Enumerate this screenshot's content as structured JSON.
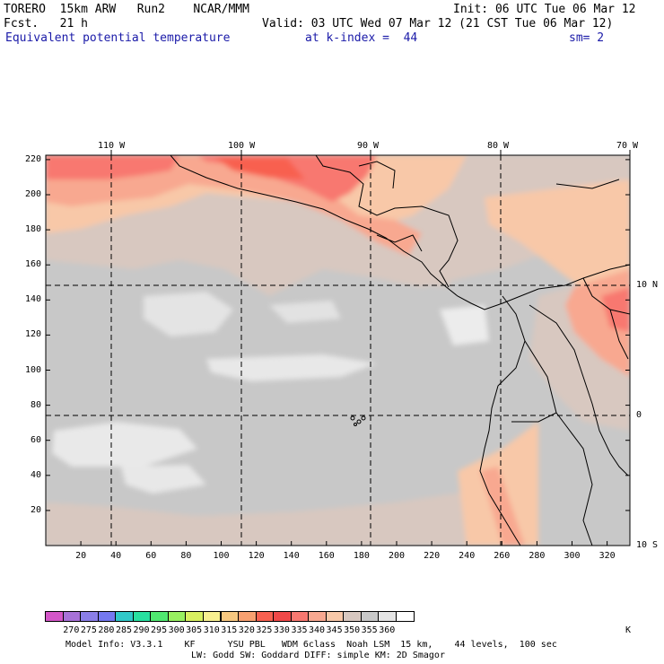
{
  "header": {
    "model_name": "TORERO  15km ARW   Run2    NCAR/MMM",
    "init": "Init: 06 UTC Tue 06 Mar 12",
    "fcst": "Fcst.   21 h",
    "valid": "Valid: 03 UTC Wed 07 Mar 12 (21 CST Tue 06 Mar 12)",
    "field": "Equivalent potential temperature",
    "level": "at k-index =  44",
    "smooth": "sm= 2"
  },
  "map": {
    "top_lon_labels": [
      "110 W",
      "100 W",
      "90 W",
      "80 W",
      "70 W"
    ],
    "right_lat_labels": [
      "10 N",
      "0",
      "10 S"
    ],
    "y_grid_labels": [
      "220",
      "200",
      "180",
      "160",
      "140",
      "120",
      "100",
      "80",
      "60",
      "40",
      "20"
    ],
    "x_grid_labels": [
      "20",
      "40",
      "60",
      "80",
      "100",
      "120",
      "140",
      "160",
      "180",
      "200",
      "220",
      "240",
      "260",
      "280",
      "300",
      "320"
    ]
  },
  "colorbar": {
    "colors": [
      "#d456c8",
      "#a872d8",
      "#8a7ee8",
      "#7478f0",
      "#30c8c8",
      "#28e0a0",
      "#50e870",
      "#98f060",
      "#d8f060",
      "#f8f090",
      "#f8c880",
      "#f8a070",
      "#f86050",
      "#f04848",
      "#f87870",
      "#f8a890",
      "#f8c8a8",
      "#d8c8c0",
      "#c8c8c8",
      "#e4e4e4",
      "#ffffff"
    ],
    "labels": [
      "270",
      "275",
      "280",
      "285",
      "290",
      "295",
      "300",
      "305",
      "310",
      "315",
      "320",
      "325",
      "330",
      "335",
      "340",
      "345",
      "350",
      "355",
      "360"
    ],
    "unit": "K"
  },
  "footer": {
    "line1": "Model Info: V3.3.1    KF      YSU PBL   WDM 6class  Noah LSM  15 km,    44 levels,  100 sec",
    "line2": "LW: Godd SW: Goddard DIFF: simple KM: 2D Smagor"
  }
}
